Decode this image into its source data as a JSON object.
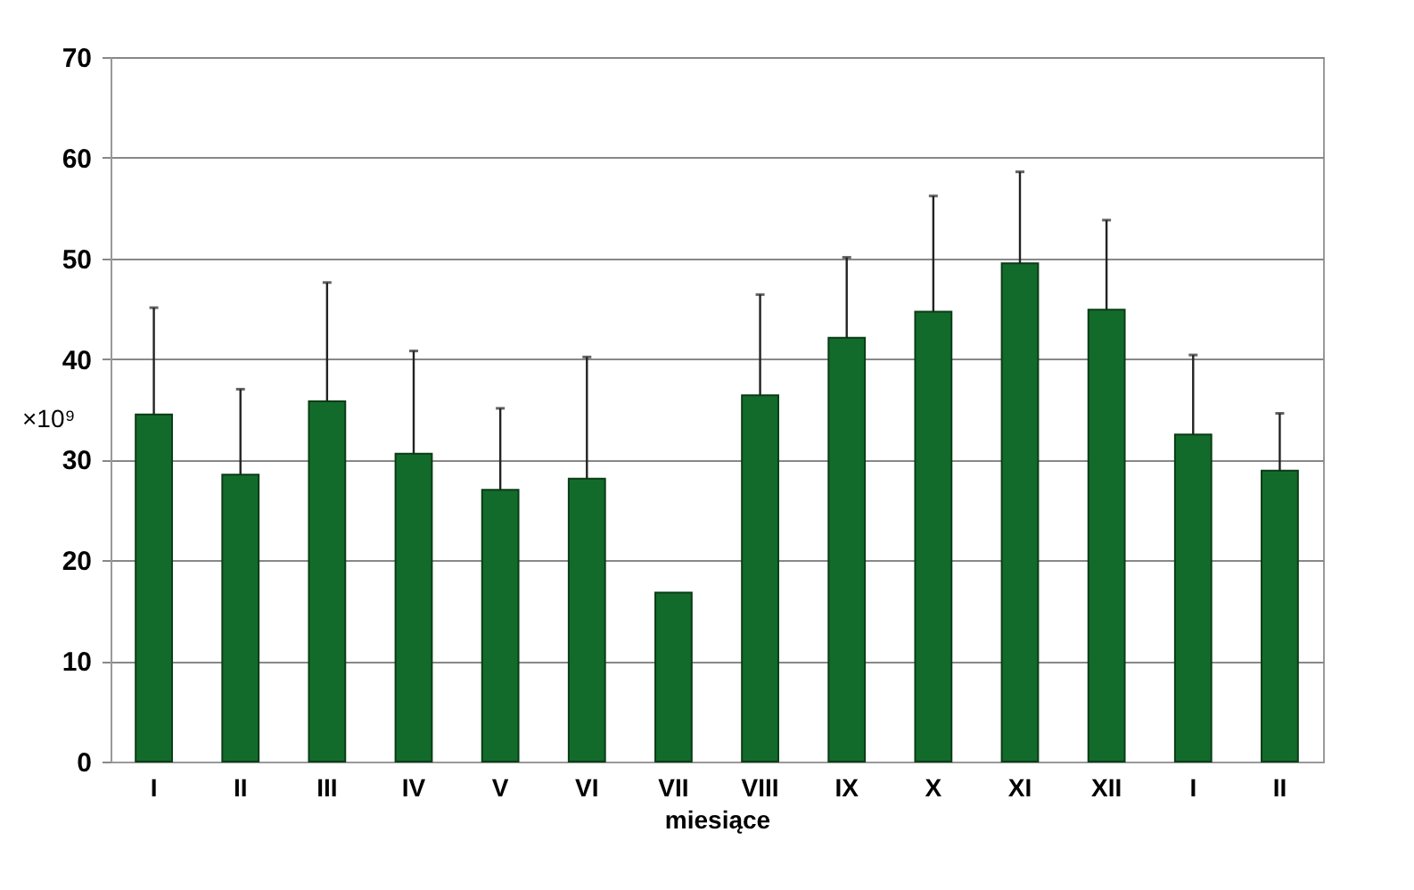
{
  "chart_data": {
    "type": "bar",
    "xlabel": "miesiące",
    "ylabel": "×10⁹",
    "categories": [
      "I",
      "II",
      "III",
      "IV",
      "V",
      "VI",
      "VII",
      "VIII",
      "IX",
      "X",
      "XI",
      "XII",
      "I",
      "II"
    ],
    "values": [
      34.5,
      28.5,
      35.8,
      30.6,
      27.0,
      28.1,
      16.8,
      36.4,
      42.1,
      44.7,
      49.5,
      44.9,
      32.5,
      28.9
    ],
    "errors": [
      [
        34.5,
        45.1
      ],
      [
        28.5,
        37.0
      ],
      [
        35.8,
        47.6
      ],
      [
        30.6,
        40.8
      ],
      [
        27.0,
        35.1
      ],
      [
        28.1,
        40.2
      ],
      null,
      [
        36.4,
        46.4
      ],
      [
        42.1,
        50.1
      ],
      [
        44.7,
        56.2
      ],
      [
        49.5,
        58.6
      ],
      [
        44.9,
        53.8
      ],
      [
        32.5,
        40.4
      ],
      [
        28.9,
        34.6
      ]
    ],
    "color": "#136b2b",
    "ylim": [
      0,
      70
    ],
    "yticks": [
      0,
      10,
      20,
      30,
      40,
      50,
      60,
      70
    ],
    "grid": "y"
  }
}
